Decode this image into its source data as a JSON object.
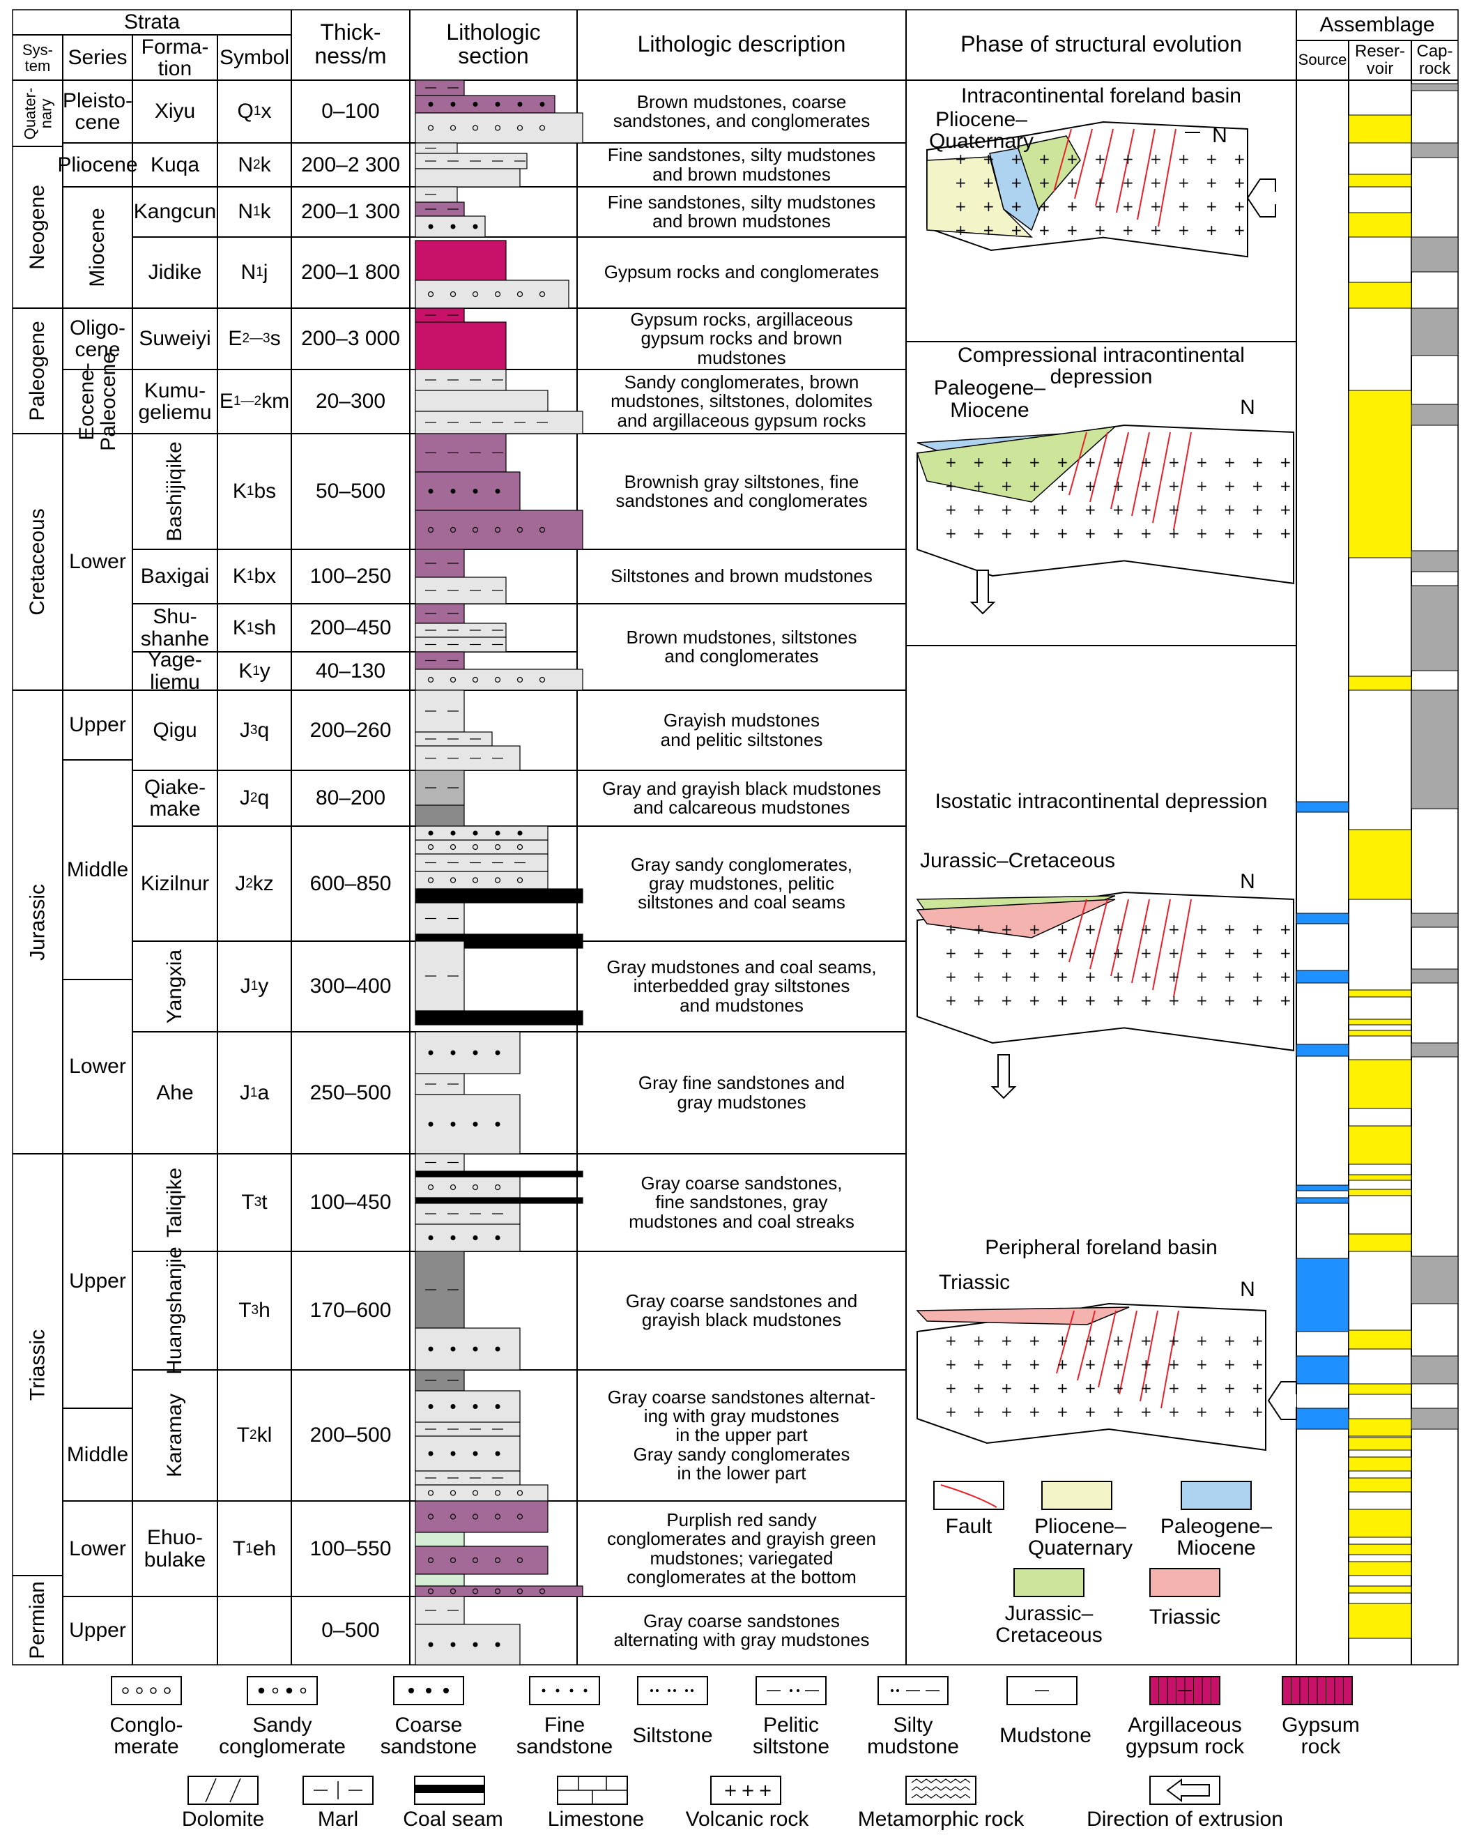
{
  "header": {
    "strata": "Strata",
    "system": "Sys-\ntem",
    "series": "Series",
    "formation": "Forma-\ntion",
    "symbol": "Symbol",
    "thickness": "Thick-\nness/m",
    "lith": "Lithologic\nsection",
    "desc": "Lithologic description",
    "phase": "Phase of structural evolution",
    "assemblage": "Assemblage",
    "source": "Source",
    "reservoir": "Reser-\nvoir",
    "caprock": "Cap-\nrock"
  },
  "systems": [
    "Quater-\nnary",
    "Neogene",
    "Paleogene",
    "Cretaceous",
    "Jurassic",
    "Triassic",
    "Permian"
  ],
  "series": [
    "Pleisto-\ncene",
    "Pliocene",
    "Miocene",
    "Oligo-\ncene",
    "Eocene-\nPaleocene",
    "Lower",
    "Upper",
    "Middle",
    "Lower",
    "Upper",
    "Middle",
    "Lower",
    "Upper"
  ],
  "formations": [
    "Xiyu",
    "Kuqa",
    "Kangcun",
    "Jidike",
    "Suweiyi",
    "Kumu-\ngeliemu",
    "Bashijiqike",
    "Baxigai",
    "Shu-\nshanhe",
    "Yage-\nliemu",
    "Qigu",
    "Qiake-\nmake",
    "Kizilnur",
    "Yangxia",
    "Ahe",
    "Taliqike",
    "Huangshanjie",
    "Karamay",
    "Ehuo-\nbulake",
    ""
  ],
  "symbols": [
    [
      "Q",
      "1",
      "x"
    ],
    [
      "N",
      "2",
      "k"
    ],
    [
      "N",
      "1",
      "k"
    ],
    [
      "N",
      "1",
      "j"
    ],
    [
      "E",
      "2—3",
      "s"
    ],
    [
      "E",
      "1—2",
      "km"
    ],
    [
      "K",
      "1",
      "bs"
    ],
    [
      "K",
      "1",
      "bx"
    ],
    [
      "K",
      "1",
      "sh"
    ],
    [
      "K",
      "1",
      "y"
    ],
    [
      "J",
      "3",
      "q"
    ],
    [
      "J",
      "2",
      "q"
    ],
    [
      "J",
      "2",
      "kz"
    ],
    [
      "J",
      "1",
      "y"
    ],
    [
      "J",
      "1",
      "a"
    ],
    [
      "T",
      "3",
      "t"
    ],
    [
      "T",
      "3",
      "h"
    ],
    [
      "T",
      "2",
      "kl"
    ],
    [
      "T",
      "1",
      "eh"
    ],
    [
      "",
      "",
      ""
    ]
  ],
  "thickness": [
    "0–100",
    "200–2 300",
    "200–1 300",
    "200–1 800",
    "200–3 000",
    "20–300",
    "50–500",
    "100–250",
    "200–450",
    "40–130",
    "200–260",
    "80–200",
    "600–850",
    "300–400",
    "250–500",
    "100–450",
    "170–600",
    "200–500",
    "100–550",
    "0–500"
  ],
  "descriptions": [
    "Brown mudstones, coarse\nsandstones, and conglomerates",
    "Fine sandstones, silty mudstones\nand brown mudstones",
    "Fine sandstones, silty mudstones\nand brown mudstones",
    "Gypsum rocks and conglomerates",
    "Gypsum rocks, argillaceous\ngypsum rocks and brown\nmudstones",
    "Sandy conglomerates, brown\nmudstones, siltstones, dolomites\nand argillaceous gypsum rocks",
    "Brownish gray siltstones, fine\nsandstones and conglomerates",
    "Siltstones and brown mudstones",
    "Brown mudstones, siltstones\nand conglomerates",
    "Grayish mudstones\nand pelitic siltstones",
    "Gray and grayish black mudstones\nand calcareous mudstones",
    "Gray sandy conglomerates,\ngray mudstones, pelitic\nsiltstones and coal seams",
    "Gray mudstones and coal seams,\ninterbedded gray siltstones\nand mudstones",
    "Gray fine sandstones and\ngray mudstones",
    "Gray coarse sandstones,\nfine sandstones, gray\nmudstones and coal streaks",
    "Gray coarse sandstones and\ngrayish black mudstones",
    "Gray coarse sandstones alternat-\ning with gray mudstones\nin the upper part\nGray sandy conglomerates\nin the lower part",
    "Purplish red sandy\nconglomerates and grayish green\nmudstones; variegated\nconglomerates at the bottom",
    "Gray coarse sandstones\nalternating with gray mudstones"
  ],
  "phases": [
    {
      "title": "Intracontinental foreland basin",
      "label": "Pliocene–\nQuaternary",
      "north": "N"
    },
    {
      "title": "Compressional intracontinental\ndepression",
      "label": "Paleogene–\nMiocene",
      "north": "N"
    },
    {
      "title": "Isostatic intracontinental depression",
      "label": "Jurassic–Cretaceous",
      "north": "N"
    },
    {
      "title": "Peripheral foreland basin",
      "label": "Triassic",
      "north": "N"
    }
  ],
  "phase_legend": [
    "Fault",
    "Pliocene–\nQuaternary",
    "Paleogene–\nMiocene",
    "Jurassic–\nCretaceous",
    "Triassic"
  ],
  "legend": [
    "Conglo-\nmerate",
    "Sandy\nconglomerate",
    "Coarse\nsandstone",
    "Fine\nsandstone",
    "Siltstone",
    "Pelitic\nsiltstone",
    "Silty\nmudstone",
    "Mudstone",
    "Argillaceous\ngypsum rock",
    "Gypsum\nrock",
    "Dolomite",
    "Marl",
    "Coal seam",
    "Limestone",
    "Volcanic rock",
    "Metamorphic rock",
    "Direction of extrusion"
  ],
  "colors": {
    "grid": "#000000",
    "purple": "#A36A98",
    "magenta": "#C8126A",
    "lightgray": "#E6E6E6",
    "midgray": "#B4B4B4",
    "darkgray": "#8A8A8A",
    "yellow": "#FFF200",
    "blue": "#1E90FF",
    "caprock": "#A8A8A8",
    "fault": "#E8202A",
    "plioq": "#F3F5C9",
    "paleo": "#ADD3F0",
    "jur": "#CDE59B",
    "tri": "#F4B3AE"
  }
}
